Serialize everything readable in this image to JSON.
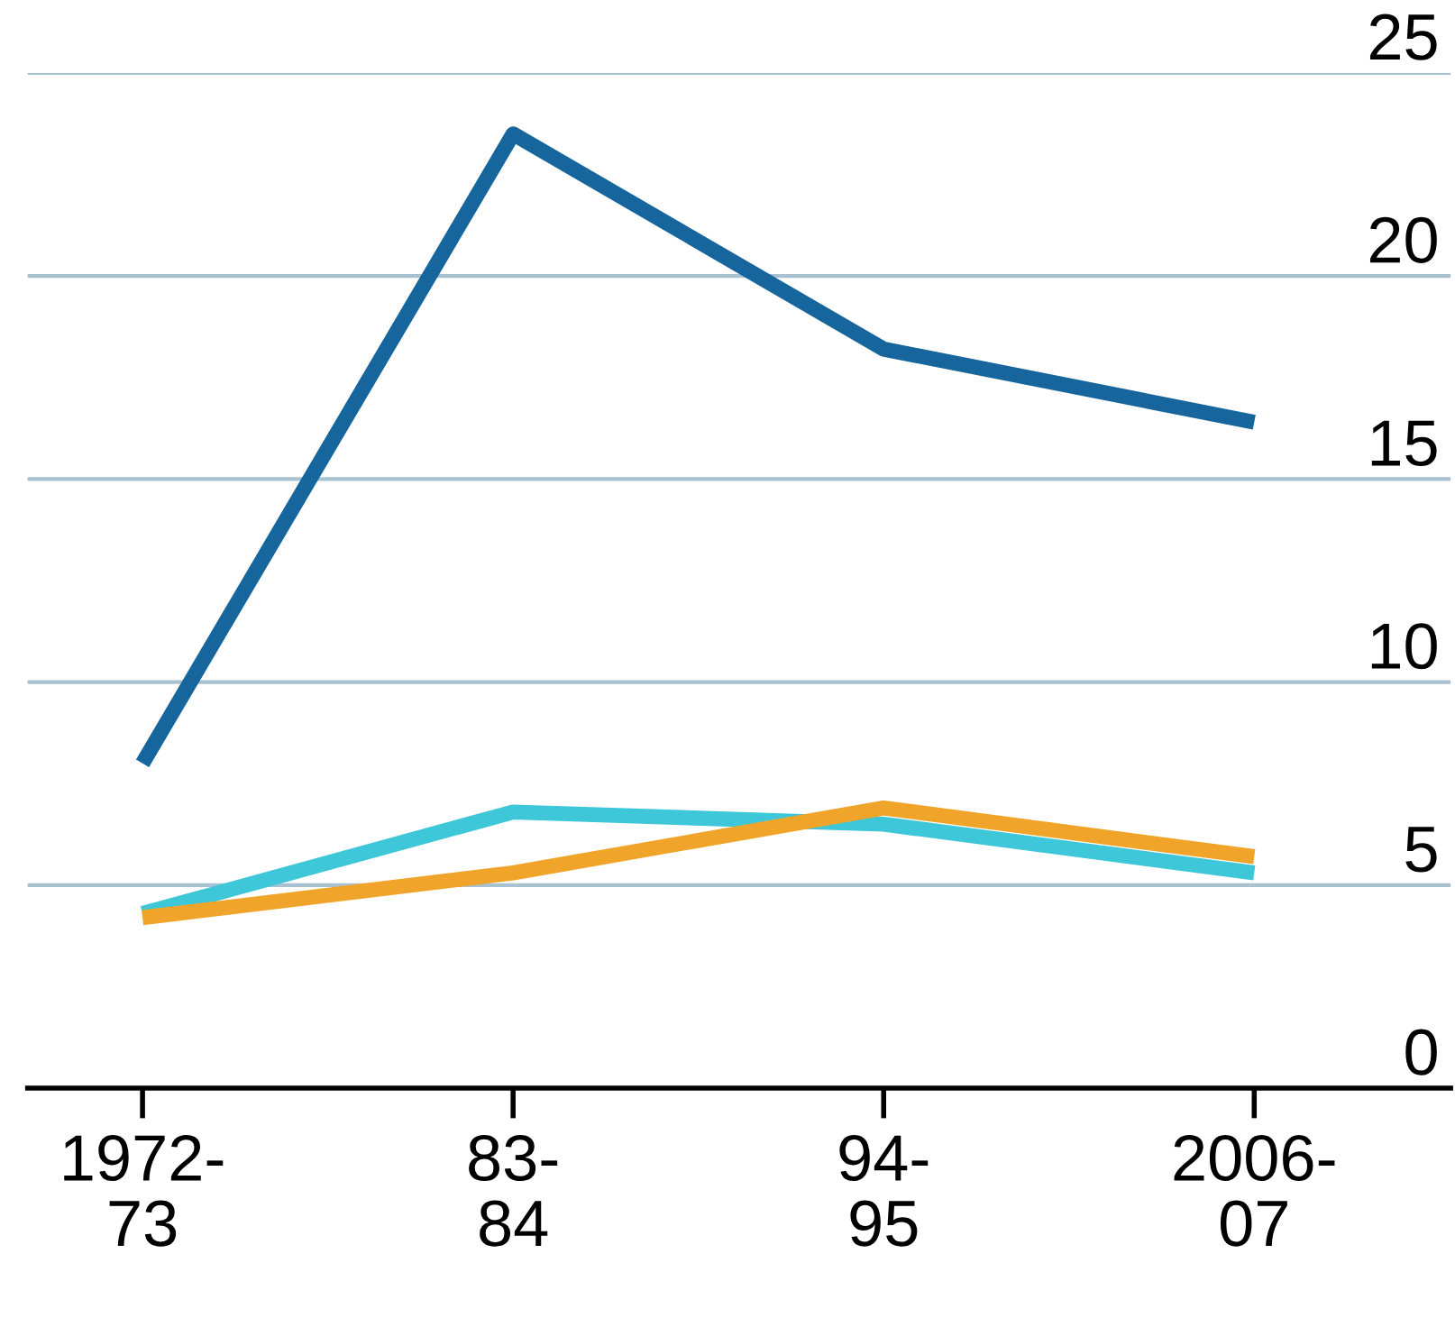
{
  "chart_data": {
    "type": "line",
    "categories": [
      "1972-\n73",
      "83-\n84",
      "94-\n95",
      "2006-\n07"
    ],
    "series": [
      {
        "color": "#17659d",
        "values": [
          8.0,
          23.5,
          18.2,
          16.4
        ]
      },
      {
        "color": "#3ec6d9",
        "values": [
          4.3,
          6.8,
          6.5,
          5.3
        ]
      },
      {
        "color": "#f0a52a",
        "values": [
          4.2,
          5.3,
          6.9,
          5.7
        ]
      }
    ],
    "ylim": [
      0,
      25
    ],
    "yticks": [
      0,
      5,
      10,
      15,
      20,
      25
    ],
    "grid": "y",
    "marker": "none",
    "line_style": "solid"
  }
}
